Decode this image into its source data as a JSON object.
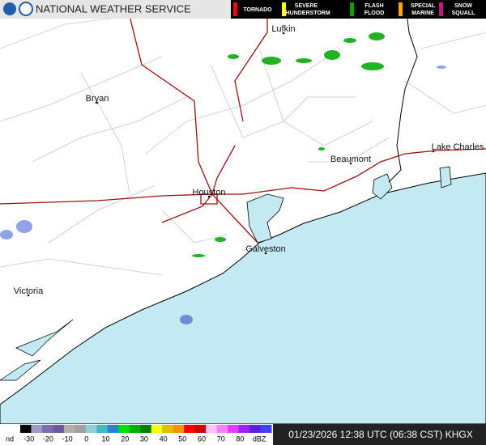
{
  "header": {
    "agency": "NATIONAL WEATHER SERVICE",
    "warnings": [
      {
        "label": "TORNADO",
        "color": "#ff0000"
      },
      {
        "label": "SEVERE THUNDERSTORM",
        "color": "#ffff00"
      },
      {
        "label": "FLASH FLOOD",
        "color": "#00a000"
      },
      {
        "label": "SPECIAL MARINE",
        "color": "#ffa500"
      },
      {
        "label": "SNOW SQUALL",
        "color": "#c71585"
      }
    ]
  },
  "cities": [
    {
      "label": "Lufkin"
    },
    {
      "label": "Bryan"
    },
    {
      "label": "Beaumont"
    },
    {
      "label": "Lake Charles"
    },
    {
      "label": "Houston"
    },
    {
      "label": "Galveston"
    },
    {
      "label": "Victoria"
    }
  ],
  "scale": {
    "labels": [
      "nd",
      "-30",
      "-20",
      "-10",
      "0",
      "10",
      "20",
      "30",
      "40",
      "50",
      "60",
      "70",
      "80",
      "dBZ"
    ]
  },
  "timestamp": "01/23/2026 12:38 UTC (06:38 CST) KHGX"
}
